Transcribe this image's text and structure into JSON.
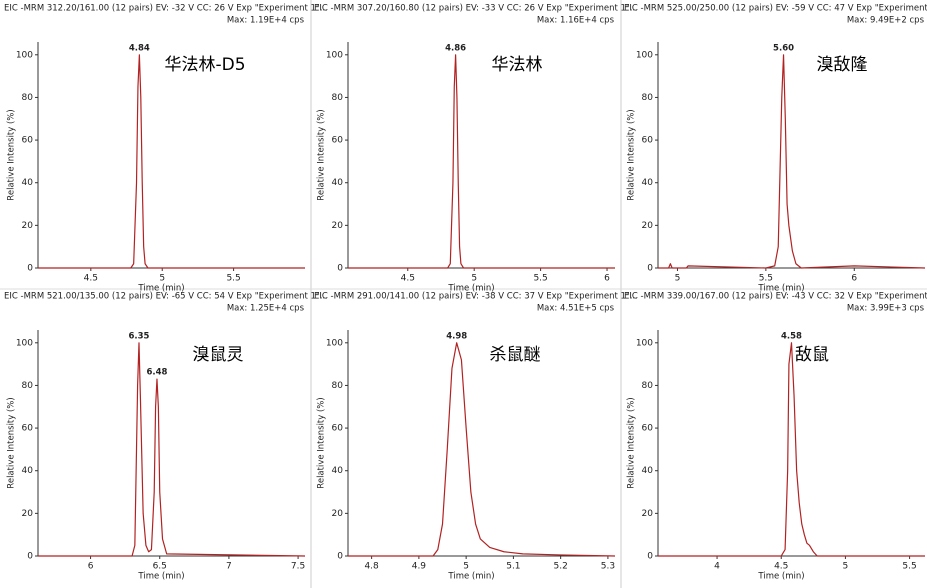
{
  "chart_data": [
    {
      "type": "line",
      "header": "EIC -MRM 312.20/161.00 (12 pairs) EV: -32 V CC: 26 V Exp \"Experiment 1\"...",
      "max_label": "Max: 1.19E+4 cps",
      "label": "华法林-D5",
      "xlabel": "Time (min)",
      "ylabel": "Relative Intensity (%)",
      "color": "#b22222",
      "xlim": [
        4.13,
        6.0
      ],
      "xticks": [
        4.5,
        5,
        5.5
      ],
      "ylim": [
        0,
        106
      ],
      "yticks": [
        0,
        20,
        40,
        60,
        80,
        100
      ],
      "x": [
        4.13,
        4.78,
        4.8,
        4.82,
        4.83,
        4.84,
        4.85,
        4.86,
        4.87,
        4.88,
        4.9,
        6.0
      ],
      "values": [
        0,
        0,
        2,
        40,
        85,
        100,
        80,
        40,
        10,
        2,
        0,
        0
      ],
      "peaks": [
        {
          "x": 4.84,
          "y": 100
        }
      ]
    },
    {
      "type": "line",
      "header": "EIC -MRM 307.20/160.80 (12 pairs) EV: -33 V CC: 26 V Exp \"Experiment 1\"...",
      "max_label": "Max: 1.16E+4 cps",
      "label": "华法林",
      "xlabel": "Time (min)",
      "ylabel": "Relative Intensity (%)",
      "color": "#b22222",
      "xlim": [
        4.05,
        6.06
      ],
      "xticks": [
        4.5,
        5,
        5.5,
        6
      ],
      "ylim": [
        0,
        106
      ],
      "yticks": [
        0,
        20,
        40,
        60,
        80,
        100
      ],
      "x": [
        4.05,
        4.8,
        4.82,
        4.84,
        4.85,
        4.86,
        4.87,
        4.88,
        4.89,
        4.9,
        4.92,
        6.06
      ],
      "values": [
        0,
        0,
        2,
        40,
        85,
        100,
        80,
        40,
        10,
        2,
        0,
        0
      ],
      "peaks": [
        {
          "x": 4.86,
          "y": 100
        }
      ]
    },
    {
      "type": "line",
      "header": "EIC -MRM 525.00/250.00 (12 pairs) EV: -59 V CC: 47 V Exp \"Experiment 1\"...",
      "max_label": "Max: 9.49E+2 cps",
      "label": "溴敌隆",
      "xlabel": "Time (min)",
      "ylabel": "Relative Intensity (%)",
      "color": "#b22222",
      "xlim": [
        4.89,
        6.4
      ],
      "xticks": [
        5,
        5.5,
        6
      ],
      "ylim": [
        0,
        106
      ],
      "yticks": [
        0,
        20,
        40,
        60,
        80,
        100
      ],
      "x": [
        4.89,
        4.95,
        4.96,
        4.97,
        5.05,
        5.06,
        5.5,
        5.55,
        5.57,
        5.59,
        5.6,
        5.61,
        5.62,
        5.63,
        5.65,
        5.67,
        5.7,
        6.0,
        6.4
      ],
      "values": [
        0,
        0,
        2,
        0,
        0,
        1,
        0,
        1,
        10,
        80,
        100,
        70,
        30,
        20,
        8,
        2,
        0,
        1,
        0
      ],
      "peaks": [
        {
          "x": {
            "value": 5.6,
            "label": "5.60"
          },
          "y": 100
        }
      ]
    },
    {
      "type": "line",
      "header": "EIC -MRM 521.00/135.00 (12 pairs) EV: -65 V CC: 54 V Exp \"Experiment 1\"...",
      "max_label": "Max: 1.25E+4 cps",
      "label": "溴鼠灵",
      "xlabel": "Time (min)",
      "ylabel": "Relative Intensity (%)",
      "color": "#b22222",
      "xlim": [
        5.62,
        7.55
      ],
      "xticks": [
        6,
        6.5,
        7,
        7.5
      ],
      "ylim": [
        0,
        106
      ],
      "yticks": [
        0,
        20,
        40,
        60,
        80,
        100
      ],
      "x": [
        5.62,
        6.3,
        6.32,
        6.34,
        6.35,
        6.36,
        6.38,
        6.4,
        6.42,
        6.44,
        6.46,
        6.47,
        6.48,
        6.49,
        6.5,
        6.52,
        6.55,
        7.55
      ],
      "values": [
        0,
        0,
        5,
        80,
        100,
        75,
        20,
        5,
        2,
        3,
        30,
        70,
        83,
        70,
        30,
        8,
        1,
        0
      ],
      "peaks": [
        {
          "x": 6.35,
          "y": 100
        },
        {
          "x": 6.48,
          "y": 83
        }
      ]
    },
    {
      "type": "line",
      "header": "EIC -MRM 291.00/141.00 (12 pairs) EV: -38 V CC: 37 V Exp \"Experiment 1\"...",
      "max_label": "Max: 4.51E+5 cps",
      "label": "杀鼠醚",
      "xlabel": "Time (min)",
      "ylabel": "Relative Intensity (%)",
      "color": "#b22222",
      "xlim": [
        4.75,
        5.315
      ],
      "xticks": [
        4.8,
        4.9,
        5,
        5.1,
        5.2,
        5.3
      ],
      "ylim": [
        0,
        106
      ],
      "yticks": [
        0,
        20,
        40,
        60,
        80,
        100
      ],
      "x": [
        4.75,
        4.93,
        4.94,
        4.95,
        4.96,
        4.97,
        4.98,
        4.99,
        5.0,
        5.01,
        5.02,
        5.03,
        5.05,
        5.08,
        5.12,
        5.2,
        5.315
      ],
      "values": [
        0,
        0,
        3,
        15,
        50,
        88,
        100,
        92,
        60,
        30,
        15,
        8,
        4,
        2,
        1,
        0.5,
        0
      ],
      "peaks": [
        {
          "x": 4.98,
          "y": 100
        }
      ]
    },
    {
      "type": "line",
      "header": "EIC -MRM 339.00/167.00 (12 pairs) EV: -43 V CC: 32 V Exp \"Experiment 1\"...",
      "max_label": "Max: 3.99E+3 cps",
      "label": "敌鼠",
      "xlabel": "Time (min)",
      "ylabel": "Relative Intensity (%)",
      "color": "#b22222",
      "xlim": [
        3.54,
        5.62
      ],
      "xticks": [
        4,
        4.5,
        5,
        5.5
      ],
      "ylim": [
        0,
        106
      ],
      "yticks": [
        0,
        20,
        40,
        60,
        80,
        100
      ],
      "x": [
        3.54,
        4.5,
        4.53,
        4.55,
        4.56,
        4.58,
        4.6,
        4.62,
        4.64,
        4.66,
        4.68,
        4.7,
        4.72,
        4.75,
        4.78,
        5.62
      ],
      "values": [
        0,
        0,
        3,
        40,
        90,
        100,
        75,
        40,
        25,
        15,
        10,
        6,
        5,
        2,
        0,
        0
      ],
      "peaks": [
        {
          "x": 4.58,
          "y": 100
        }
      ]
    }
  ]
}
